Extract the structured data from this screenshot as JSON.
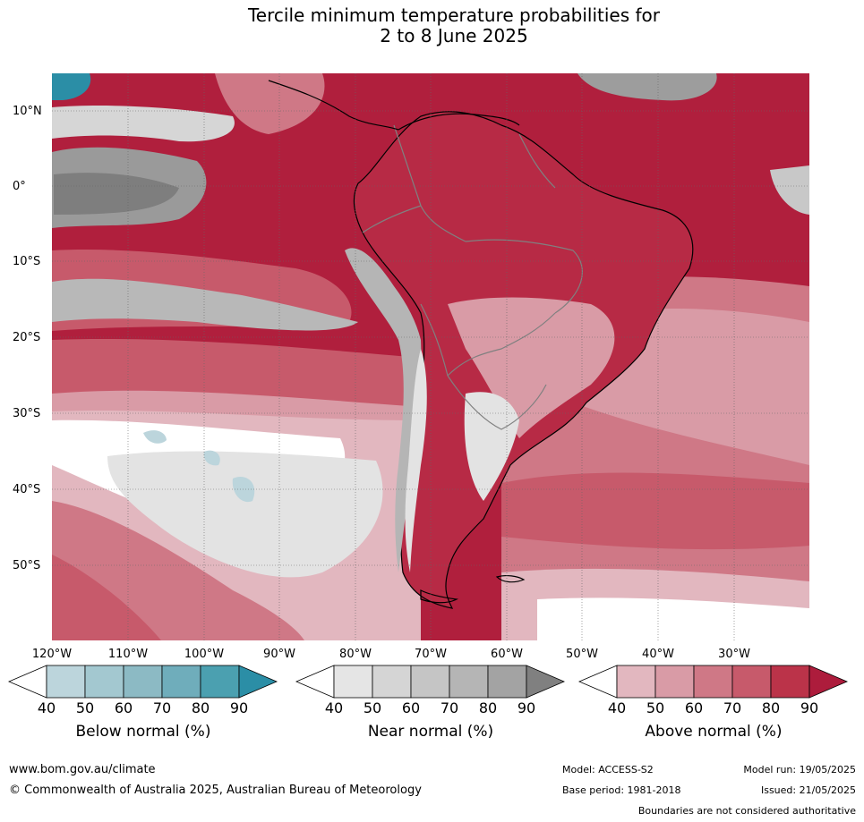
{
  "title": {
    "line1": "Tercile minimum temperature probabilities for",
    "line2": "2 to 8 June 2025"
  },
  "axes": {
    "lat_labels": [
      "10°N",
      "0°",
      "10°S",
      "20°S",
      "30°S",
      "40°S",
      "50°S"
    ],
    "lon_labels": [
      "120°W",
      "110°W",
      "100°W",
      "90°W",
      "80°W",
      "70°W",
      "60°W",
      "50°W",
      "40°W",
      "30°W"
    ]
  },
  "colorbars": [
    {
      "label": "Below normal (%)",
      "ticks": [
        "40",
        "50",
        "60",
        "70",
        "80",
        "90"
      ],
      "colors": [
        "#ffffff",
        "#bcd5dc",
        "#a3c8d0",
        "#8cbac4",
        "#6fadbb",
        "#4ba0b0",
        "#2b8ea6"
      ]
    },
    {
      "label": "Near normal (%)",
      "ticks": [
        "40",
        "50",
        "60",
        "70",
        "80",
        "90"
      ],
      "colors": [
        "#ffffff",
        "#e5e5e5",
        "#d5d5d5",
        "#c5c5c5",
        "#b5b5b5",
        "#a3a3a3",
        "#808080"
      ]
    },
    {
      "label": "Above normal (%)",
      "ticks": [
        "40",
        "50",
        "60",
        "70",
        "80",
        "90"
      ],
      "colors": [
        "#ffffff",
        "#e2b7bf",
        "#d99ba6",
        "#cf7886",
        "#c75a6b",
        "#bb3349",
        "#ad1c3c"
      ]
    }
  ],
  "footer": {
    "url": "www.bom.gov.au/climate",
    "copyright": "© Commonwealth of Australia 2025, Australian Bureau of Meteorology",
    "model": "Model: ACCESS-S2",
    "base_period": "Base period: 1981-2018",
    "model_run": "Model run: 19/05/2025",
    "issued": "Issued: 21/05/2025",
    "note": "Boundaries are not considered authoritative"
  }
}
